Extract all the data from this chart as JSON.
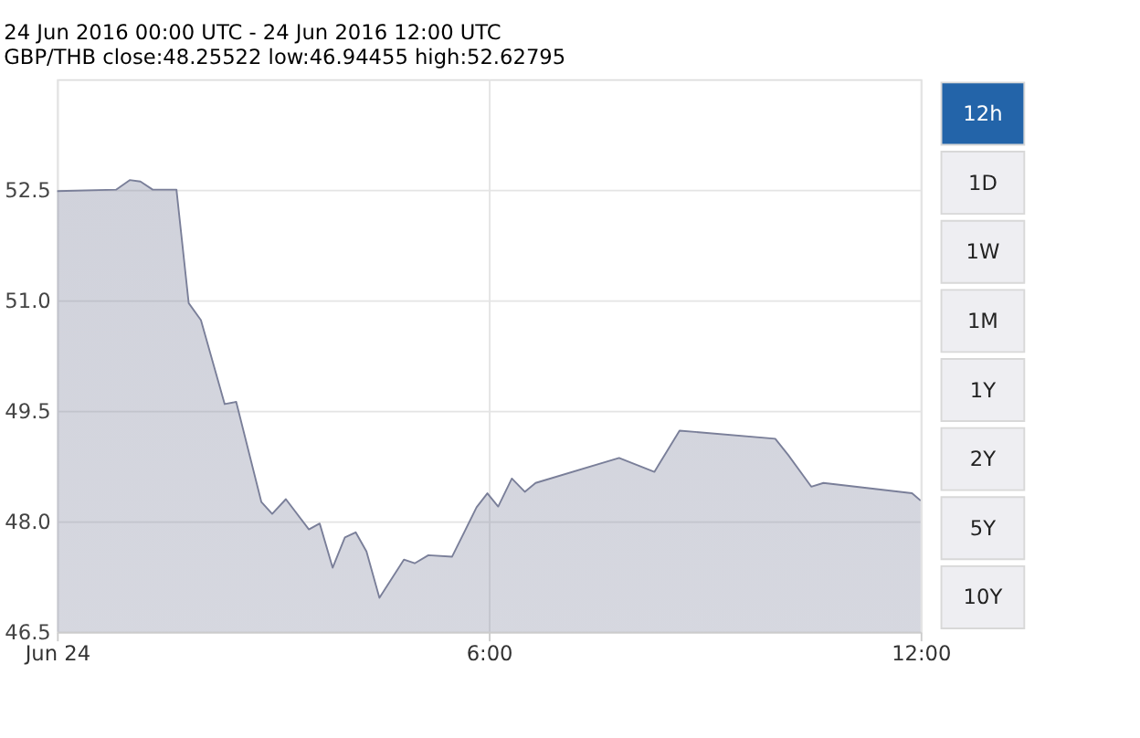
{
  "chart_data": {
    "type": "area",
    "title": "24 Jun 2016 00:00 UTC - 24 Jun 2016 12:00 UTC",
    "subtitle": "GBP/THB close:48.25522 low:46.94455 high:52.62795",
    "x": [
      0.0,
      0.82,
      1.01,
      1.16,
      1.33,
      1.66,
      1.83,
      2.0,
      2.33,
      2.49,
      2.84,
      2.99,
      3.18,
      3.5,
      3.65,
      3.83,
      4.0,
      4.15,
      4.3,
      4.48,
      4.82,
      4.97,
      5.16,
      5.49,
      5.83,
      5.98,
      6.13,
      6.32,
      6.5,
      6.65,
      7.81,
      8.3,
      8.65,
      9.98,
      10.16,
      10.48,
      10.65,
      11.88,
      12.0
    ],
    "series": [
      {
        "color": "#7a7f99",
        "values": [
          52.48,
          52.5,
          52.63,
          52.61,
          52.5,
          52.5,
          50.96,
          50.73,
          49.59,
          49.62,
          48.26,
          48.1,
          48.3,
          47.89,
          47.97,
          47.37,
          47.78,
          47.85,
          47.59,
          46.96,
          47.48,
          47.43,
          47.54,
          47.52,
          48.19,
          48.38,
          48.2,
          48.58,
          48.4,
          48.52,
          48.86,
          48.67,
          49.23,
          49.12,
          48.9,
          48.47,
          48.52,
          48.38,
          48.28
        ]
      }
    ],
    "xlim": [
      0,
      12
    ],
    "xticks": [
      {
        "value": 0,
        "label": "Jun 24"
      },
      {
        "value": 6,
        "label": "6:00"
      },
      {
        "value": 12,
        "label": "12:00"
      }
    ],
    "ylim": [
      46.5,
      54.0
    ],
    "yticks": [
      46.5,
      {
        "value": 48,
        "label": "48.0"
      },
      49.5,
      {
        "value": 51,
        "label": "51.0"
      },
      52.5
    ],
    "grid": true,
    "annotations": [
      "12h",
      "1D",
      "1W",
      "1M",
      "1Y",
      "2Y",
      "5Y",
      "10Y"
    ]
  }
}
